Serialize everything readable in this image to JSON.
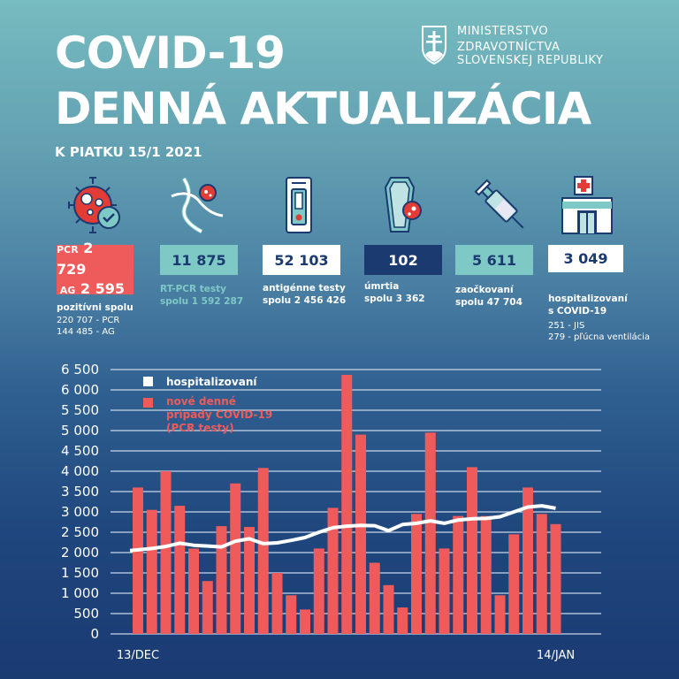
{
  "header": {
    "title_line1": "COVID-19",
    "title_line2": "DENNÁ AKTUALIZÁCIA",
    "date": "K PIATKU 15/1 2021",
    "ministry_line1": "MINISTERSTVO",
    "ministry_line2": "ZDRAVOTNÍCTVA",
    "ministry_line3": "SLOVENSKEJ REPUBLIKY",
    "crest_icon": "slovak-crest-icon"
  },
  "stats": [
    {
      "icon": "virus-check-icon",
      "prefix1": "PCR",
      "value1": "2 729",
      "prefix2": "AG",
      "value2": "2 595",
      "caption": "pozitívni spolu",
      "sub1": "220 707 - PCR",
      "sub2": "144 485 - AG",
      "box_color": "#ef5b5b",
      "text_color": "#ffffff"
    },
    {
      "icon": "dna-virus-icon",
      "value": "11 875",
      "caption1": "RT-PCR testy",
      "caption2": "spolu 1 592 287",
      "box_color": "#7ec8c6",
      "text_color": "#1b3a70",
      "caption_color": "#7ec8c6"
    },
    {
      "icon": "antigen-test-icon",
      "value": "52 103",
      "caption1": "antigénne testy",
      "caption2": "spolu 2 456 426",
      "box_color": "#ffffff",
      "text_color": "#1b3a70"
    },
    {
      "icon": "coffin-virus-icon",
      "value": "102",
      "caption1": "úmrtia",
      "caption2": "spolu 3 362",
      "box_color": "#1b3a70",
      "text_color": "#ffffff"
    },
    {
      "icon": "syringe-icon",
      "value": "5 611",
      "caption1": "zaočkovaní",
      "caption2": "spolu 47 704",
      "box_color": "#7ec8c6",
      "text_color": "#1b3a70"
    },
    {
      "icon": "hospital-icon",
      "value": "3 049",
      "caption1": "hospitalizovaní",
      "caption2": "s COVID-19",
      "sub1": "251 - JIS",
      "sub2": "279 - pľúcna ventilácia",
      "box_color": "#ffffff",
      "text_color": "#1b3a70"
    }
  ],
  "chart_data": {
    "type": "bar",
    "title": "",
    "xlabel": "",
    "ylabel": "",
    "ylim": [
      0,
      6500
    ],
    "yticks": [
      0,
      500,
      1000,
      1500,
      2000,
      2500,
      3000,
      3500,
      4000,
      4500,
      5000,
      5500,
      6000,
      6500
    ],
    "ytick_labels": [
      "0",
      "500",
      "1 000",
      "1 500",
      "2 000",
      "2 500",
      "3 000",
      "3 500",
      "4 000",
      "4 500",
      "5 000",
      "5 500",
      "6 000",
      "6 500"
    ],
    "x_labels": [
      {
        "index": 0,
        "label": "13/DEC"
      },
      {
        "index": 30,
        "label": "14/JAN"
      }
    ],
    "grid": true,
    "legend": "top-left",
    "series": [
      {
        "name": "nové denné prípady COVID-19 (PCR testy)",
        "type": "bar",
        "color": "#ef5b5b",
        "values": [
          3600,
          3050,
          4000,
          3150,
          2100,
          1300,
          2650,
          3700,
          2630,
          4080,
          1500,
          950,
          600,
          2100,
          3100,
          6370,
          4900,
          1750,
          1200,
          650,
          2950,
          4950,
          2100,
          2900,
          4100,
          2900,
          950,
          2450,
          3600,
          2950,
          2700
        ]
      },
      {
        "name": "hospitalizovaní",
        "type": "line",
        "color": "#ffffff",
        "values": [
          2050,
          2100,
          2150,
          2230,
          2180,
          2160,
          2140,
          2280,
          2340,
          2220,
          2240,
          2300,
          2370,
          2500,
          2610,
          2650,
          2670,
          2660,
          2540,
          2690,
          2720,
          2780,
          2720,
          2800,
          2830,
          2840,
          2880,
          3000,
          3120,
          3150,
          3090
        ]
      }
    ],
    "legend_entries": [
      {
        "label": "hospitalizovaní",
        "color": "#ffffff"
      },
      {
        "label_line1": "nové denné",
        "label_line2": "prípady COVID-19",
        "label_line3": "(PCR testy)",
        "color": "#ef5b5b"
      }
    ]
  }
}
